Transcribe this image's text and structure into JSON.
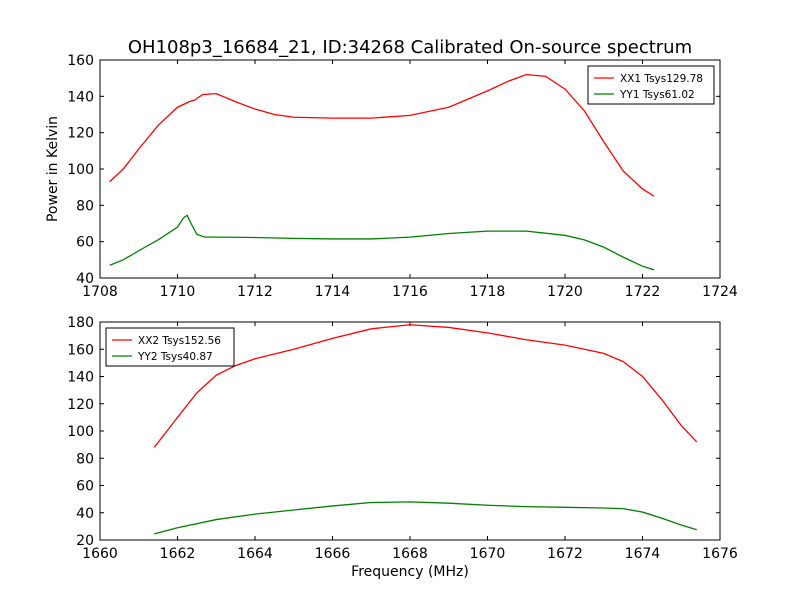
{
  "title": "OH108p3_16684_21, ID:34268 Calibrated On-source spectrum",
  "colors": {
    "red": "#ff0000",
    "green": "#008000"
  },
  "chart_data": [
    {
      "type": "line",
      "ylabel": "Power in Kelvin",
      "xlabel": "",
      "xlim": [
        1708,
        1724
      ],
      "ylim": [
        40,
        160
      ],
      "xticks": [
        1708,
        1710,
        1712,
        1714,
        1716,
        1718,
        1720,
        1722,
        1724
      ],
      "yticks": [
        40,
        60,
        80,
        100,
        120,
        140,
        160
      ],
      "legend_position": "top-right",
      "series": [
        {
          "name": "XX1 Tsys129.78",
          "color": "#ff0000",
          "points": [
            [
              1708.25,
              93
            ],
            [
              1708.6,
              100
            ],
            [
              1709.0,
              111
            ],
            [
              1709.5,
              124
            ],
            [
              1710.0,
              134
            ],
            [
              1710.3,
              137
            ],
            [
              1710.45,
              138
            ],
            [
              1710.65,
              141
            ],
            [
              1711.0,
              141.5
            ],
            [
              1711.5,
              137
            ],
            [
              1712.0,
              133
            ],
            [
              1712.5,
              130
            ],
            [
              1713.0,
              128.5
            ],
            [
              1714.0,
              128
            ],
            [
              1715.0,
              128
            ],
            [
              1716.0,
              129.5
            ],
            [
              1717.0,
              134
            ],
            [
              1718.0,
              143
            ],
            [
              1718.5,
              148
            ],
            [
              1719.0,
              152
            ],
            [
              1719.5,
              151
            ],
            [
              1720.0,
              144
            ],
            [
              1720.5,
              132
            ],
            [
              1721.0,
              115
            ],
            [
              1721.5,
              99
            ],
            [
              1722.0,
              89
            ],
            [
              1722.3,
              85
            ]
          ]
        },
        {
          "name": "YY1 Tsys61.02",
          "color": "#008000",
          "points": [
            [
              1708.25,
              47
            ],
            [
              1708.6,
              50
            ],
            [
              1709.0,
              55
            ],
            [
              1709.5,
              61
            ],
            [
              1710.0,
              68
            ],
            [
              1710.15,
              73
            ],
            [
              1710.25,
              74.5
            ],
            [
              1710.35,
              70
            ],
            [
              1710.5,
              64
            ],
            [
              1710.7,
              62.5
            ],
            [
              1711.0,
              62.5
            ],
            [
              1712.0,
              62.3
            ],
            [
              1713.0,
              61.8
            ],
            [
              1714.0,
              61.5
            ],
            [
              1715.0,
              61.5
            ],
            [
              1716.0,
              62.5
            ],
            [
              1717.0,
              64.5
            ],
            [
              1718.0,
              65.8
            ],
            [
              1719.0,
              65.8
            ],
            [
              1720.0,
              63.5
            ],
            [
              1720.5,
              61
            ],
            [
              1721.0,
              57
            ],
            [
              1721.5,
              51.5
            ],
            [
              1722.0,
              46.5
            ],
            [
              1722.3,
              44.5
            ]
          ]
        }
      ]
    },
    {
      "type": "line",
      "ylabel": "",
      "xlabel": "Frequency (MHz)",
      "xlim": [
        1660,
        1676
      ],
      "ylim": [
        20,
        180
      ],
      "xticks": [
        1660,
        1662,
        1664,
        1666,
        1668,
        1670,
        1672,
        1674,
        1676
      ],
      "yticks": [
        20,
        40,
        60,
        80,
        100,
        120,
        140,
        160,
        180
      ],
      "legend_position": "top-left",
      "series": [
        {
          "name": "XX2 Tsys152.56",
          "color": "#ff0000",
          "points": [
            [
              1661.4,
              88
            ],
            [
              1662.0,
              110
            ],
            [
              1662.5,
              128
            ],
            [
              1663.0,
              141
            ],
            [
              1663.5,
              148
            ],
            [
              1664.0,
              153
            ],
            [
              1665.0,
              160
            ],
            [
              1666.0,
              168
            ],
            [
              1667.0,
              175
            ],
            [
              1668.0,
              178
            ],
            [
              1669.0,
              176
            ],
            [
              1670.0,
              172
            ],
            [
              1671.0,
              167
            ],
            [
              1672.0,
              163
            ],
            [
              1673.0,
              157
            ],
            [
              1673.5,
              151
            ],
            [
              1674.0,
              140
            ],
            [
              1674.5,
              123
            ],
            [
              1675.0,
              104
            ],
            [
              1675.4,
              92
            ]
          ]
        },
        {
          "name": "YY2 Tsys40.87",
          "color": "#008000",
          "points": [
            [
              1661.4,
              24.5
            ],
            [
              1662.0,
              29
            ],
            [
              1663.0,
              35
            ],
            [
              1664.0,
              39
            ],
            [
              1665.0,
              42
            ],
            [
              1666.0,
              45
            ],
            [
              1667.0,
              47.5
            ],
            [
              1668.0,
              48
            ],
            [
              1669.0,
              47
            ],
            [
              1670.0,
              45.5
            ],
            [
              1671.0,
              44.5
            ],
            [
              1672.0,
              44
            ],
            [
              1673.0,
              43.5
            ],
            [
              1673.5,
              43
            ],
            [
              1674.0,
              40.5
            ],
            [
              1674.5,
              36
            ],
            [
              1675.0,
              31
            ],
            [
              1675.4,
              27.5
            ]
          ]
        }
      ]
    }
  ]
}
